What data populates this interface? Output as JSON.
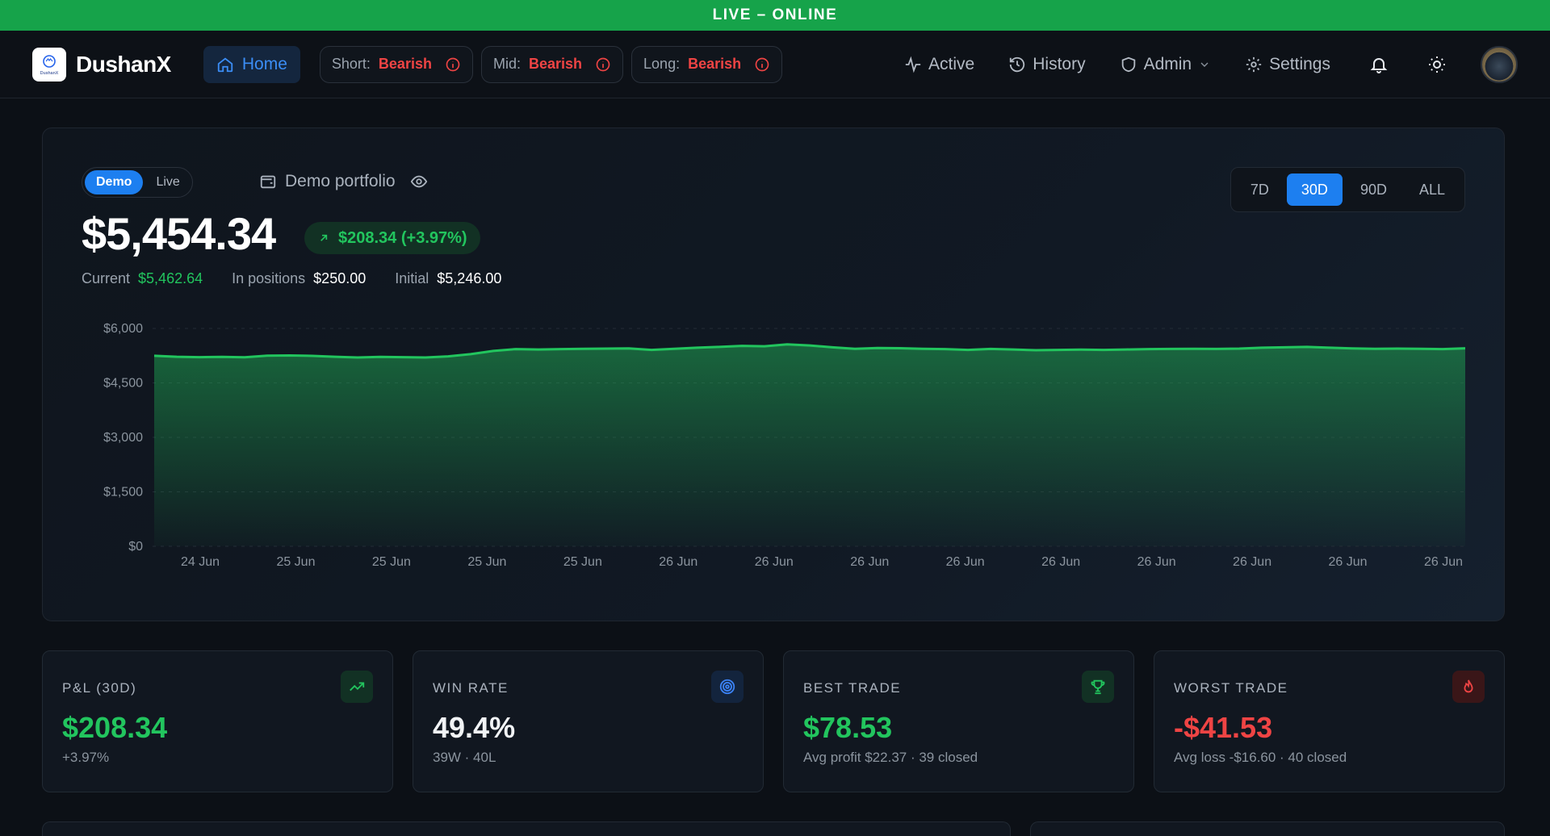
{
  "banner": {
    "text": "LIVE – ONLINE"
  },
  "brand": {
    "name": "DushanX",
    "logo_text": "DushanX"
  },
  "nav": {
    "home_label": "Home",
    "sentiments": [
      {
        "label": "Short:",
        "value": "Bearish"
      },
      {
        "label": "Mid:",
        "value": "Bearish"
      },
      {
        "label": "Long:",
        "value": "Bearish"
      }
    ],
    "links": {
      "active": "Active",
      "history": "History",
      "admin": "Admin",
      "settings": "Settings"
    }
  },
  "portfolio": {
    "mode_demo": "Demo",
    "mode_live": "Live",
    "name": "Demo portfolio",
    "balance": "$5,454.34",
    "change": "$208.34 (+3.97%)",
    "current_label": "Current",
    "current_value": "$5,462.64",
    "positions_label": "In positions",
    "positions_value": "$250.00",
    "initial_label": "Initial",
    "initial_value": "$5,246.00"
  },
  "range": {
    "options": [
      "7D",
      "30D",
      "90D",
      "ALL"
    ],
    "selected": "30D"
  },
  "chart_data": {
    "type": "area",
    "yticks": [
      "$6,000",
      "$4,500",
      "$3,000",
      "$1,500",
      "$0"
    ],
    "ylim": [
      0,
      6000
    ],
    "xticks": [
      "24 Jun",
      "25 Jun",
      "25 Jun",
      "25 Jun",
      "25 Jun",
      "26 Jun",
      "26 Jun",
      "26 Jun",
      "26 Jun",
      "26 Jun",
      "26 Jun",
      "26 Jun",
      "26 Jun",
      "26 Jun"
    ],
    "values": [
      5246,
      5220,
      5210,
      5215,
      5205,
      5250,
      5255,
      5245,
      5220,
      5200,
      5215,
      5210,
      5200,
      5230,
      5290,
      5380,
      5430,
      5420,
      5430,
      5440,
      5445,
      5450,
      5410,
      5440,
      5470,
      5490,
      5520,
      5510,
      5560,
      5530,
      5480,
      5440,
      5460,
      5455,
      5440,
      5430,
      5410,
      5435,
      5420,
      5400,
      5410,
      5415,
      5410,
      5420,
      5430,
      5435,
      5440,
      5435,
      5445,
      5470,
      5480,
      5490,
      5470,
      5450,
      5440,
      5445,
      5440,
      5430,
      5454
    ],
    "color": "#22c55e"
  },
  "cards": [
    {
      "title": "P&L (30D)",
      "value": "$208.34",
      "sub": "+3.97%",
      "tone": "green",
      "icon": "trending-up-icon"
    },
    {
      "title": "WIN RATE",
      "value": "49.4%",
      "sub": "39W · 40L",
      "tone": "white",
      "icon": "target-icon"
    },
    {
      "title": "BEST TRADE",
      "value": "$78.53",
      "sub": "Avg profit $22.37 · 39 closed",
      "tone": "green",
      "icon": "trophy-icon"
    },
    {
      "title": "WORST TRADE",
      "value": "-$41.53",
      "sub": "Avg loss -$16.60 · 40 closed",
      "tone": "red",
      "icon": "flame-icon"
    }
  ]
}
